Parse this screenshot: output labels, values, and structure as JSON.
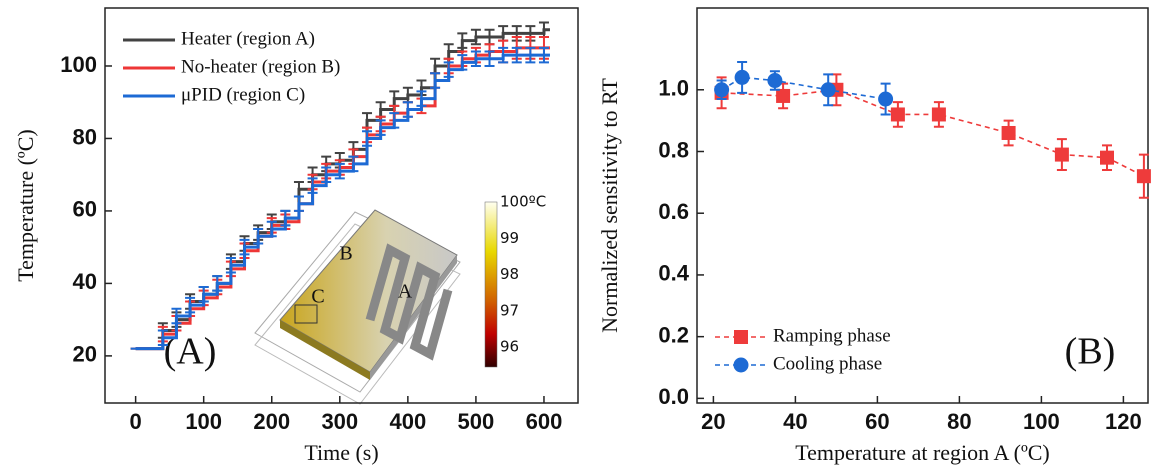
{
  "chart_data": [
    {
      "type": "line",
      "line_style": "step",
      "panel_label": "(A)",
      "x_label": "Time (s)",
      "y_label": "Temperature (ºC)",
      "xlim": [
        -45,
        650
      ],
      "ylim": [
        7,
        116
      ],
      "xticks": [
        0,
        100,
        200,
        300,
        400,
        500,
        600
      ],
      "yticks": [
        20,
        40,
        60,
        80,
        100
      ],
      "legend": "upper left",
      "x": [
        0,
        20,
        40,
        60,
        80,
        100,
        120,
        140,
        160,
        180,
        200,
        220,
        240,
        260,
        280,
        300,
        320,
        340,
        360,
        380,
        400,
        420,
        440,
        460,
        480,
        500,
        520,
        540,
        560,
        580,
        600
      ],
      "series": [
        {
          "name": "Heater (region A)",
          "color": "#424242",
          "values": [
            22,
            22,
            27,
            30,
            35,
            37,
            40,
            46,
            51,
            54,
            57,
            58,
            66,
            70,
            73,
            74,
            77,
            85,
            88,
            91,
            92,
            94,
            100,
            104,
            107,
            108,
            108,
            109,
            109,
            109,
            110
          ],
          "errors": [
            0,
            0,
            2,
            2,
            2,
            2,
            2,
            2,
            2,
            2,
            2,
            2,
            2,
            2,
            2,
            2,
            2,
            2,
            2,
            2,
            2,
            2,
            2,
            2,
            2,
            2,
            2,
            2,
            2,
            2,
            2
          ]
        },
        {
          "name": "No-heater (region B)",
          "color": "#ee3636",
          "values": [
            22,
            22,
            26,
            29,
            33,
            36,
            39,
            44,
            49,
            53,
            56,
            57,
            62,
            68,
            71,
            72,
            75,
            81,
            84,
            87,
            88,
            89,
            96,
            100,
            102,
            103,
            104,
            104,
            105,
            105,
            105
          ],
          "errors": [
            0,
            0,
            2,
            2,
            2,
            2,
            2,
            2,
            2,
            2,
            2,
            2,
            2,
            2,
            2,
            2,
            2,
            2,
            2,
            2,
            2,
            2,
            2,
            2,
            2,
            2,
            2,
            3,
            3,
            3,
            3
          ]
        },
        {
          "name": "μPID (region C)",
          "color": "#1d6ad4",
          "values": [
            22,
            22,
            25,
            31,
            34,
            37,
            40,
            45,
            50,
            53,
            55,
            58,
            62,
            67,
            70,
            71,
            73,
            80,
            83,
            85,
            88,
            91,
            96,
            99,
            101,
            102,
            102,
            103,
            103,
            103,
            103
          ],
          "errors": [
            0,
            0,
            2,
            2,
            2,
            2,
            2,
            2,
            2,
            2,
            2,
            2,
            2,
            2,
            2,
            2,
            2,
            2,
            2,
            2,
            2,
            2,
            2,
            2,
            2,
            2,
            2,
            2,
            2,
            2,
            2
          ]
        }
      ],
      "inset": {
        "labels": [
          "B",
          "A",
          "C"
        ],
        "colorbar_ticks": [
          {
            "value": 100,
            "label": "100ºC"
          },
          99,
          98,
          97,
          96
        ]
      }
    },
    {
      "type": "scatter",
      "line_style": "dashed",
      "panel_label": "(B)",
      "x_label": "Temperature at region A (ºC)",
      "y_label": "Normalized sensitivity to RT",
      "xlim": [
        16,
        126
      ],
      "ylim": [
        -0.015,
        1.265
      ],
      "xticks": [
        20,
        40,
        60,
        80,
        100,
        120
      ],
      "yticks": [
        {
          "value": 0,
          "label": "0.0"
        },
        0.2,
        0.4,
        0.6,
        0.8,
        {
          "value": 1,
          "label": "1.0"
        }
      ],
      "legend": "lower left",
      "series": [
        {
          "name": "Ramping phase",
          "color": "#ee3b3b",
          "marker": "square",
          "x": [
            22,
            37,
            50,
            65,
            75,
            92,
            105,
            116,
            125
          ],
          "values": [
            0.99,
            0.98,
            1.0,
            0.92,
            0.92,
            0.86,
            0.79,
            0.78,
            0.72
          ],
          "errors": [
            0.05,
            0.04,
            0.05,
            0.04,
            0.04,
            0.04,
            0.05,
            0.04,
            0.07
          ]
        },
        {
          "name": "Cooling phase",
          "color": "#1d6ad4",
          "marker": "circle",
          "x": [
            22,
            27,
            35,
            48,
            62
          ],
          "values": [
            1.0,
            1.04,
            1.03,
            1.0,
            0.97
          ],
          "errors": [
            0.03,
            0.05,
            0.03,
            0.05,
            0.05
          ]
        }
      ]
    }
  ]
}
